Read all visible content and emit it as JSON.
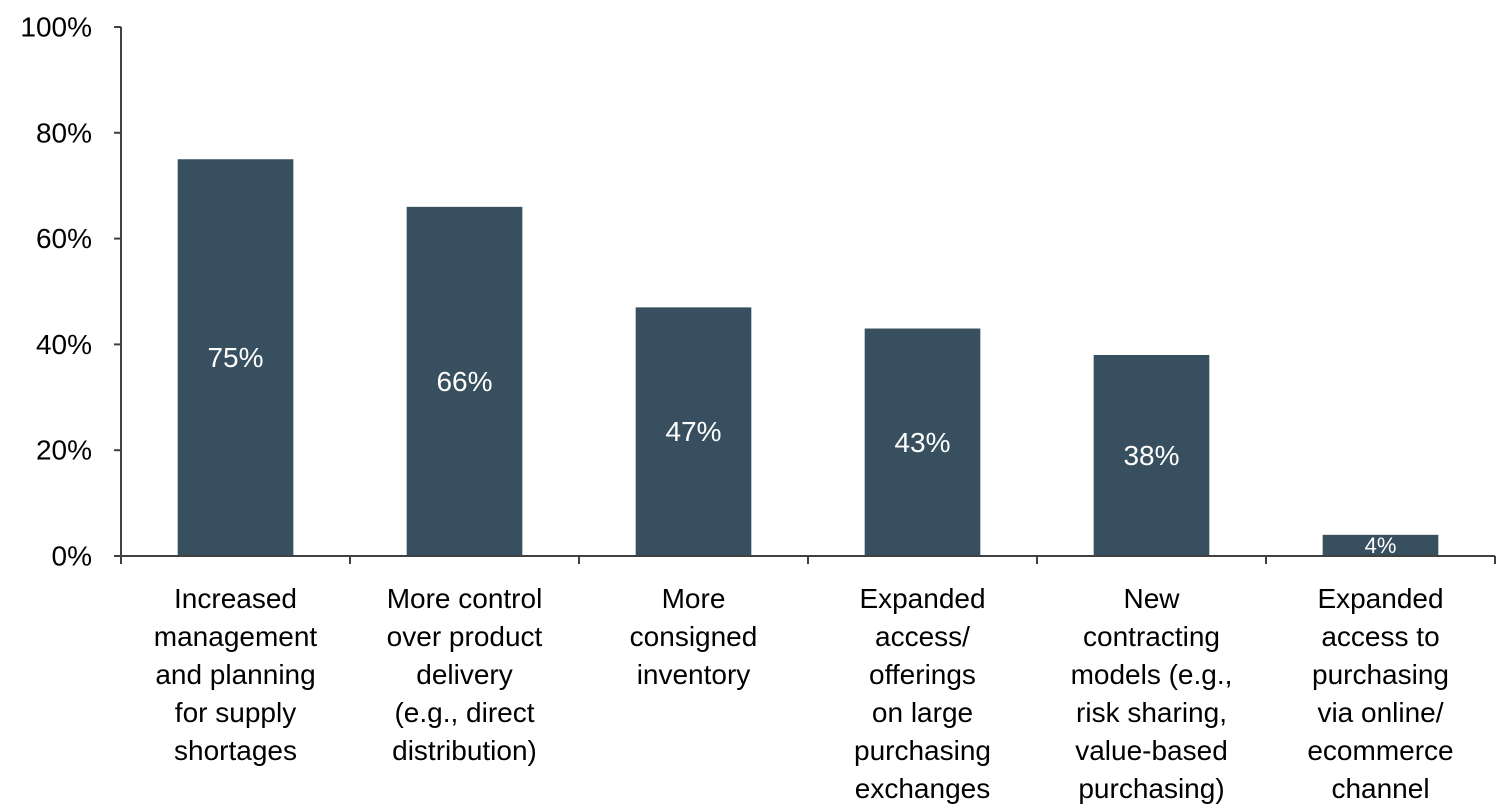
{
  "chart_data": {
    "type": "bar",
    "categories": [
      "Increased management and planning for supply shortages",
      "More control over product delivery (e.g., direct distribution)",
      "More consigned inventory",
      "Expanded access/ offerings on large purchasing exchanges",
      "New contracting models (e.g., risk sharing, value-based purchasing)",
      "Expanded access to purchasing via online/ ecommerce channel"
    ],
    "category_lines": [
      [
        "Increased",
        "management",
        "and planning",
        "for supply",
        "shortages"
      ],
      [
        "More control",
        "over product",
        "delivery",
        "(e.g., direct",
        "distribution)"
      ],
      [
        "More",
        "consigned",
        "inventory"
      ],
      [
        "Expanded",
        "access/",
        "offerings",
        "on large",
        "purchasing",
        "exchanges"
      ],
      [
        "New",
        "contracting",
        "models (e.g.,",
        "risk sharing,",
        "value-based",
        "purchasing)"
      ],
      [
        "Expanded",
        "access to",
        "purchasing",
        "via online/",
        "ecommerce",
        "channel"
      ]
    ],
    "values": [
      75,
      66,
      47,
      43,
      38,
      4
    ],
    "data_labels": [
      "75%",
      "66%",
      "47%",
      "43%",
      "38%",
      "4%"
    ],
    "ylim": [
      0,
      100
    ],
    "yticks": [
      0,
      20,
      40,
      60,
      80,
      100
    ],
    "ytick_labels": [
      "0%",
      "20%",
      "40%",
      "60%",
      "80%",
      "100%"
    ],
    "title": "",
    "xlabel": "",
    "ylabel": "",
    "grid": false,
    "legend": "none",
    "bar_color": "#374F5E",
    "axis_color": "#404040",
    "label_color": "#000000",
    "data_label_color": "#ffffff"
  }
}
